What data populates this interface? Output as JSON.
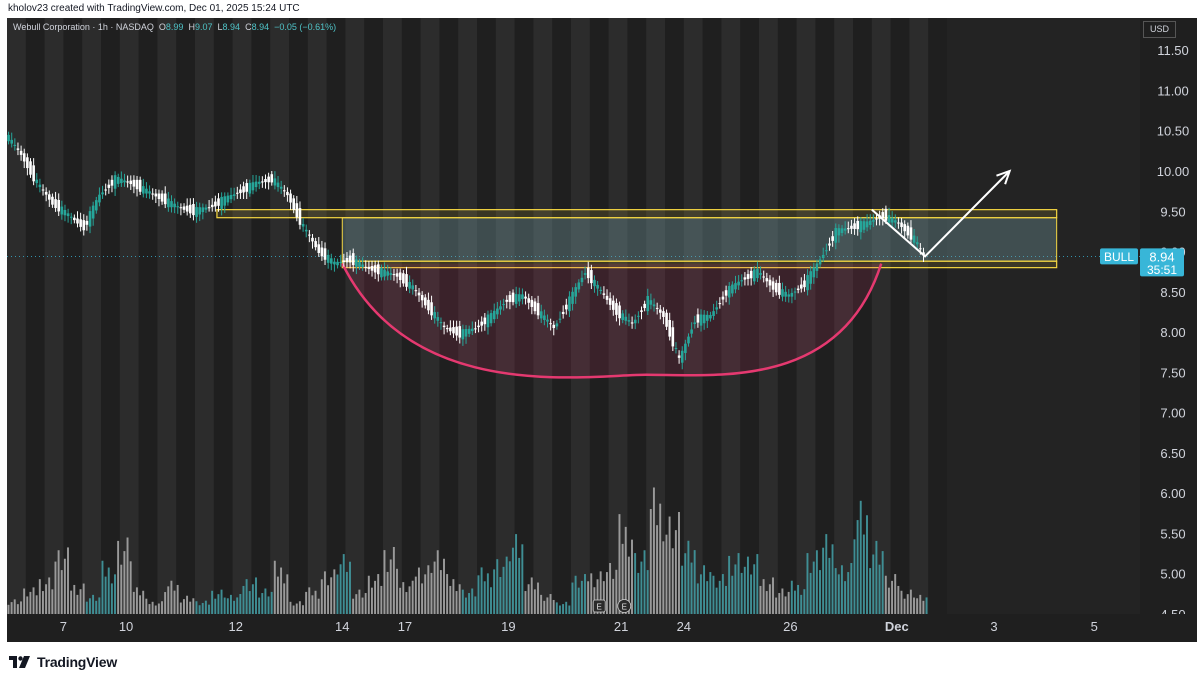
{
  "header": {
    "credit": "kholov23 created with TradingView.com, Dec 01, 2025 15:24 UTC"
  },
  "legend": {
    "symbol": "Webull Corporation · 1h · NASDAQ",
    "o_label": "O",
    "o_value": "8.99",
    "h_label": "H",
    "h_value": "9.07",
    "l_label": "L",
    "l_value": "8.94",
    "c_label": "C",
    "c_value": "8.94",
    "change": "−0.05 (−0.61%)"
  },
  "currency": "USD",
  "price_tag": {
    "ticker": "BULL",
    "price": "8.94",
    "countdown": "35:51"
  },
  "markers": {
    "earnings_1": "E",
    "earnings_2": "E"
  },
  "footer": {
    "brand": "TradingView"
  },
  "colors": {
    "up": "#26a69a",
    "down": "#ffffff",
    "rectangle": "#f5d742",
    "arc": "#e53970",
    "price_tag": "#38b6d8"
  },
  "chart_data": {
    "type": "line",
    "title": "Webull Corporation · 1h · NASDAQ",
    "ylim": [
      4.5,
      11.8
    ],
    "y_ticks": [
      "11.50",
      "11.00",
      "10.50",
      "10.00",
      "9.50",
      "9.00",
      "8.50",
      "8.00",
      "7.50",
      "7.00",
      "6.50",
      "6.00",
      "5.50",
      "5.00",
      "4.50"
    ],
    "x_ticks": [
      "7",
      "10",
      "12",
      "14",
      "17",
      "19",
      "21",
      "24",
      "26",
      "Dec",
      "3",
      "5"
    ],
    "x_tick_index": [
      18,
      38,
      73,
      107,
      127,
      160,
      196,
      216,
      250,
      284,
      315,
      347
    ],
    "price_index": [
      0,
      5,
      10,
      15,
      20,
      25,
      30,
      35,
      40,
      45,
      50,
      55,
      60,
      65,
      70,
      75,
      80,
      85,
      90,
      95,
      100,
      105,
      110,
      115,
      120,
      125,
      130,
      135,
      140,
      145,
      150,
      155,
      160,
      165,
      170,
      175,
      180,
      185,
      190,
      195,
      200,
      205,
      210,
      215,
      220,
      225,
      230,
      235,
      240,
      245,
      250,
      255,
      260,
      265,
      270,
      275,
      280,
      285,
      290,
      293
    ],
    "price_values": [
      10.45,
      10.2,
      9.85,
      9.6,
      9.45,
      9.3,
      9.7,
      9.9,
      9.85,
      9.75,
      9.65,
      9.55,
      9.5,
      9.55,
      9.65,
      9.75,
      9.85,
      9.9,
      9.7,
      9.3,
      9.0,
      8.85,
      8.9,
      8.8,
      8.75,
      8.7,
      8.55,
      8.3,
      8.05,
      7.98,
      8.05,
      8.2,
      8.4,
      8.45,
      8.25,
      8.05,
      8.4,
      8.75,
      8.5,
      8.25,
      8.1,
      8.4,
      8.2,
      7.65,
      8.15,
      8.2,
      8.5,
      8.65,
      8.75,
      8.55,
      8.45,
      8.6,
      8.9,
      9.25,
      9.3,
      9.35,
      9.45,
      9.35,
      9.15,
      8.94
    ],
    "volume_values": [
      0.12,
      0.2,
      0.3,
      0.5,
      0.25,
      0.15,
      0.4,
      0.6,
      0.2,
      0.1,
      0.25,
      0.15,
      0.1,
      0.2,
      0.15,
      0.3,
      0.2,
      0.4,
      0.1,
      0.2,
      0.35,
      0.45,
      0.2,
      0.3,
      0.55,
      0.25,
      0.4,
      0.5,
      0.3,
      0.2,
      0.35,
      0.45,
      0.6,
      0.3,
      0.15,
      0.1,
      0.3,
      0.35,
      0.4,
      0.75,
      0.5,
      0.95,
      0.8,
      0.55,
      0.4,
      0.3,
      0.5,
      0.45,
      0.3,
      0.2,
      0.25,
      0.5,
      0.6,
      0.4,
      0.85,
      0.6,
      0.3,
      0.2,
      0.15,
      0.25
    ],
    "total_slots": 360,
    "ranging_box": {
      "from_index": 107,
      "to_index": 335,
      "top": 9.42,
      "bottom": 8.88
    },
    "upper_band": {
      "from_index": 67,
      "to_index": 335,
      "top": 9.52,
      "bottom": 9.42
    },
    "lower_band": {
      "from_index": 107,
      "to_index": 335,
      "top": 8.88,
      "bottom": 8.8
    },
    "cup_arc": {
      "from_index": 107,
      "bottom_index": 204,
      "to_index": 279,
      "rim": 8.85,
      "bottom": 7.47
    },
    "projection": [
      {
        "i": 276,
        "y": 9.52
      },
      {
        "i": 293,
        "y": 8.94
      },
      {
        "i": 320,
        "y": 10.0
      }
    ],
    "last_price": 8.94
  }
}
